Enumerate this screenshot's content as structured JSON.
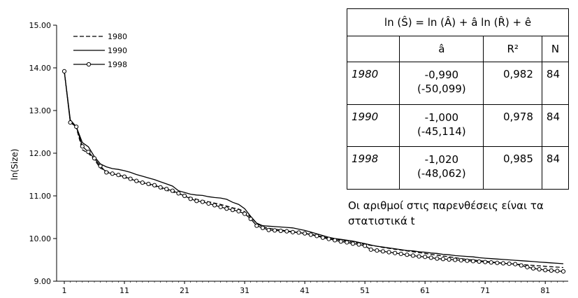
{
  "chart_data": {
    "type": "line",
    "ylabel": "ln(Size)",
    "xlabel": "",
    "xlim": [
      1,
      84
    ],
    "ylim": [
      9.0,
      15.0
    ],
    "x_ticks": [
      "1",
      "11",
      "21",
      "31",
      "41",
      "51",
      "61",
      "71",
      "81"
    ],
    "y_ticks": [
      "9.00",
      "10.00",
      "11.00",
      "12.00",
      "13.00",
      "14.00",
      "15.00"
    ],
    "grid": false,
    "legend_position": "top-left",
    "series": [
      {
        "name": "1980",
        "style": "dashed",
        "color": "#000000",
        "values": [
          13.92,
          12.75,
          12.6,
          12.08,
          12.0,
          11.85,
          11.65,
          11.58,
          11.52,
          11.47,
          11.43,
          11.39,
          11.34,
          11.3,
          11.26,
          11.23,
          11.18,
          11.13,
          11.09,
          11.05,
          11.0,
          10.96,
          10.92,
          10.89,
          10.86,
          10.83,
          10.8,
          10.76,
          10.72,
          10.69,
          10.63,
          10.5,
          10.36,
          10.27,
          10.24,
          10.22,
          10.2,
          10.18,
          10.16,
          10.14,
          10.12,
          10.1,
          10.07,
          10.04,
          10.01,
          9.99,
          9.96,
          9.94,
          9.91,
          9.89,
          9.86,
          9.84,
          9.82,
          9.79,
          9.77,
          9.75,
          9.73,
          9.71,
          9.69,
          9.67,
          9.65,
          9.63,
          9.61,
          9.59,
          9.57,
          9.55,
          9.53,
          9.51,
          9.5,
          9.48,
          9.47,
          9.45,
          9.44,
          9.42,
          9.41,
          9.4,
          9.39,
          9.38,
          9.37,
          9.36,
          9.35,
          9.34,
          9.33,
          9.32
        ]
      },
      {
        "name": "1990",
        "style": "solid",
        "color": "#000000",
        "values": [
          13.92,
          12.78,
          12.62,
          12.25,
          12.15,
          11.92,
          11.75,
          11.68,
          11.64,
          11.62,
          11.59,
          11.55,
          11.5,
          11.46,
          11.42,
          11.38,
          11.33,
          11.28,
          11.23,
          11.12,
          11.08,
          11.04,
          11.02,
          11.01,
          10.98,
          10.96,
          10.95,
          10.92,
          10.85,
          10.8,
          10.7,
          10.52,
          10.36,
          10.3,
          10.29,
          10.28,
          10.27,
          10.26,
          10.25,
          10.22,
          10.19,
          10.15,
          10.11,
          10.07,
          10.03,
          10.0,
          9.98,
          9.96,
          9.94,
          9.91,
          9.88,
          9.85,
          9.82,
          9.8,
          9.78,
          9.76,
          9.74,
          9.72,
          9.71,
          9.69,
          9.68,
          9.66,
          9.65,
          9.63,
          9.62,
          9.6,
          9.59,
          9.58,
          9.57,
          9.55,
          9.54,
          9.53,
          9.52,
          9.51,
          9.5,
          9.49,
          9.48,
          9.47,
          9.46,
          9.45,
          9.44,
          9.43,
          9.42,
          9.41
        ]
      },
      {
        "name": "1998",
        "style": "circles",
        "color": "#000000",
        "values": [
          13.92,
          12.72,
          12.62,
          12.16,
          12.03,
          11.88,
          11.7,
          11.55,
          11.52,
          11.49,
          11.45,
          11.4,
          11.35,
          11.31,
          11.28,
          11.25,
          11.2,
          11.16,
          11.12,
          11.06,
          11.0,
          10.93,
          10.88,
          10.86,
          10.82,
          10.78,
          10.74,
          10.7,
          10.67,
          10.64,
          10.58,
          10.46,
          10.3,
          10.25,
          10.2,
          10.19,
          10.18,
          10.17,
          10.15,
          10.14,
          10.12,
          10.09,
          10.06,
          10.02,
          9.99,
          9.96,
          9.93,
          9.91,
          9.88,
          9.86,
          9.83,
          9.74,
          9.72,
          9.7,
          9.68,
          9.66,
          9.64,
          9.62,
          9.6,
          9.58,
          9.57,
          9.55,
          9.53,
          9.52,
          9.51,
          9.5,
          9.49,
          9.48,
          9.47,
          9.46,
          9.45,
          9.44,
          9.43,
          9.42,
          9.41,
          9.4,
          9.37,
          9.33,
          9.3,
          9.28,
          9.26,
          9.25,
          9.24,
          9.23
        ]
      }
    ]
  },
  "stats_table": {
    "equation": "ln (Ŝ) = ln (Â) + â ln (R̂) + ê",
    "headers": [
      "",
      "â",
      "R²",
      "N"
    ],
    "rows": [
      {
        "year": "1980",
        "coef": "-0,990",
        "tstat": "(-50,099)",
        "r2": "0,982",
        "n": "84"
      },
      {
        "year": "1990",
        "coef": "-1,000",
        "tstat": "(-45,114)",
        "r2": "0,978",
        "n": "84"
      },
      {
        "year": "1998",
        "coef": "-1,020",
        "tstat": "(-48,062)",
        "r2": "0,985",
        "n": "84"
      }
    ]
  },
  "note": "Οι αριθμοί στις παρενθέσεις είναι τα στατιστικά t"
}
